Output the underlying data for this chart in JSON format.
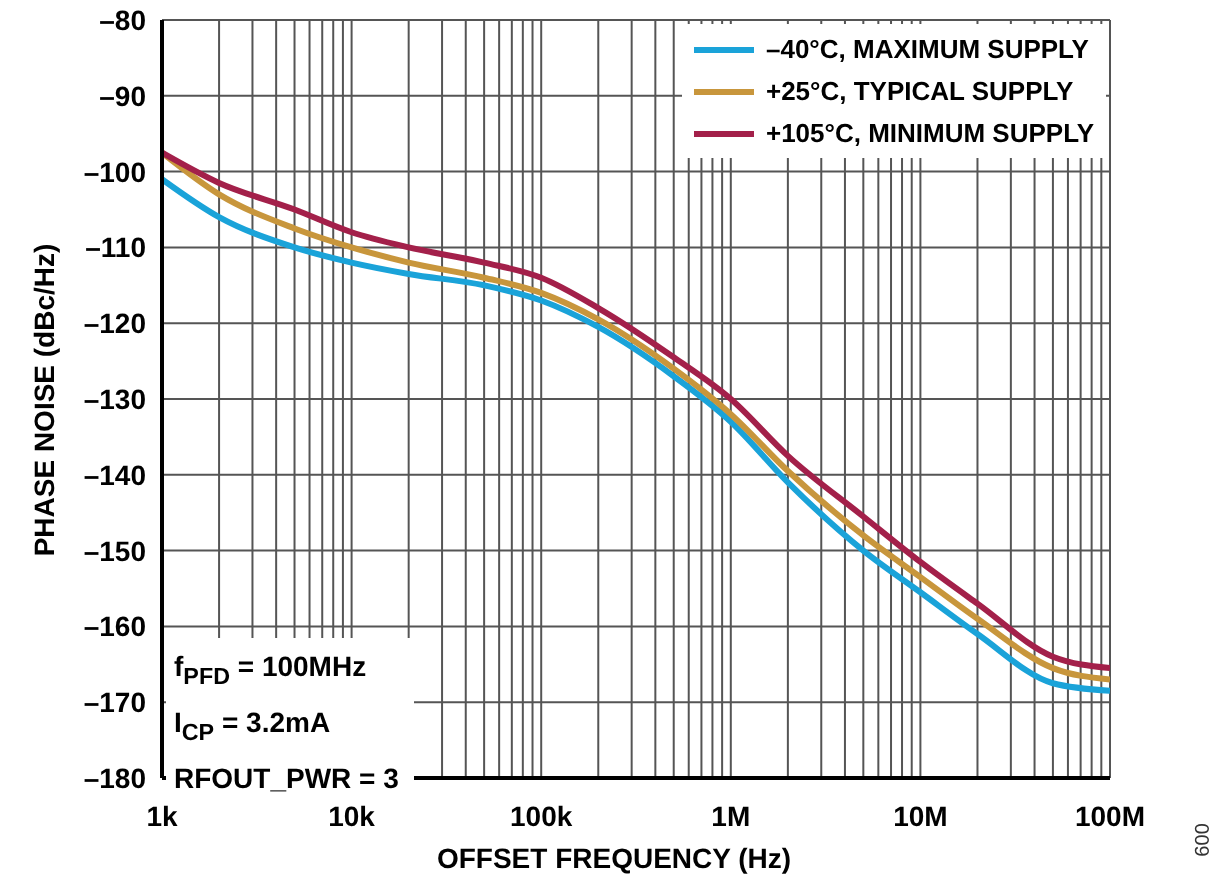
{
  "chart_data": {
    "type": "line",
    "xlabel": "OFFSET FREQUENCY (Hz)",
    "ylabel": "PHASE NOISE (dBc/Hz)",
    "x": [
      1000,
      2000,
      5000,
      10000,
      20000,
      50000,
      100000,
      200000,
      500000,
      1000000,
      2000000,
      5000000,
      10000000,
      20000000,
      50000000,
      100000000
    ],
    "series": [
      {
        "name": "–40°C, MAXIMUM SUPPLY",
        "color": "#1aa3d9",
        "values": [
          -101,
          -106,
          -110,
          -112,
          -113.5,
          -115,
          -117,
          -120.5,
          -127,
          -133,
          -141,
          -150,
          -155.5,
          -161,
          -167.5,
          -168.5
        ]
      },
      {
        "name": "+25°C, TYPICAL SUPPLY",
        "color": "#c8963c",
        "values": [
          -97.5,
          -103,
          -107.5,
          -110,
          -112,
          -114,
          -116,
          -119.5,
          -126,
          -132,
          -139.5,
          -148,
          -153.5,
          -159,
          -165.5,
          -167
        ]
      },
      {
        "name": "+105°C, MINIMUM SUPPLY",
        "color": "#a3204a",
        "values": [
          -97.5,
          -101.5,
          -105,
          -108,
          -110,
          -112,
          -114,
          -118,
          -124.5,
          -130,
          -137.5,
          -145.5,
          -151.5,
          -157,
          -164,
          -165.5
        ]
      }
    ],
    "log": "x",
    "xlim": [
      1000,
      100000000
    ],
    "xticks": [
      {
        "value": 1000,
        "label": "1k"
      },
      {
        "value": 2000,
        "label": null
      },
      {
        "value": 3000,
        "label": null
      },
      {
        "value": 4000,
        "label": null
      },
      {
        "value": 5000,
        "label": null
      },
      {
        "value": 6000,
        "label": null
      },
      {
        "value": 7000,
        "label": null
      },
      {
        "value": 8000,
        "label": null
      },
      {
        "value": 9000,
        "label": null
      },
      {
        "value": 10000,
        "label": "10k"
      },
      {
        "value": 20000,
        "label": null
      },
      {
        "value": 30000,
        "label": null
      },
      {
        "value": 40000,
        "label": null
      },
      {
        "value": 50000,
        "label": null
      },
      {
        "value": 60000,
        "label": null
      },
      {
        "value": 70000,
        "label": null
      },
      {
        "value": 80000,
        "label": null
      },
      {
        "value": 90000,
        "label": null
      },
      {
        "value": 100000,
        "label": "100k"
      },
      {
        "value": 200000,
        "label": null
      },
      {
        "value": 300000,
        "label": null
      },
      {
        "value": 400000,
        "label": null
      },
      {
        "value": 500000,
        "label": null
      },
      {
        "value": 600000,
        "label": null
      },
      {
        "value": 700000,
        "label": null
      },
      {
        "value": 800000,
        "label": null
      },
      {
        "value": 900000,
        "label": null
      },
      {
        "value": 1000000,
        "label": "1M"
      },
      {
        "value": 2000000,
        "label": null
      },
      {
        "value": 3000000,
        "label": null
      },
      {
        "value": 4000000,
        "label": null
      },
      {
        "value": 5000000,
        "label": null
      },
      {
        "value": 6000000,
        "label": null
      },
      {
        "value": 7000000,
        "label": null
      },
      {
        "value": 8000000,
        "label": null
      },
      {
        "value": 9000000,
        "label": null
      },
      {
        "value": 10000000,
        "label": "10M"
      },
      {
        "value": 20000000,
        "label": null
      },
      {
        "value": 30000000,
        "label": null
      },
      {
        "value": 40000000,
        "label": null
      },
      {
        "value": 50000000,
        "label": null
      },
      {
        "value": 60000000,
        "label": null
      },
      {
        "value": 70000000,
        "label": null
      },
      {
        "value": 80000000,
        "label": null
      },
      {
        "value": 90000000,
        "label": null
      },
      {
        "value": 100000000,
        "label": "100M"
      }
    ],
    "ylim": [
      -180,
      -80
    ],
    "yticks": [
      {
        "value": -180,
        "label": "–180"
      },
      {
        "value": -170,
        "label": "–170"
      },
      {
        "value": -160,
        "label": "–160"
      },
      {
        "value": -150,
        "label": "–150"
      },
      {
        "value": -140,
        "label": "–140"
      },
      {
        "value": -130,
        "label": "–130"
      },
      {
        "value": -120,
        "label": "–120"
      },
      {
        "value": -110,
        "label": "–110"
      },
      {
        "value": -100,
        "label": "–100"
      },
      {
        "value": -90,
        "label": "–90"
      },
      {
        "value": -80,
        "label": "–80"
      }
    ],
    "grid": true,
    "legend": "top right",
    "marker": "none",
    "line_style": "solid",
    "annotations": [
      "f$_{PFD}$ = 100MHz",
      "I$_{CP}$ = 3.2mA",
      "RFOUT_PWR = 3",
      "009"
    ]
  }
}
